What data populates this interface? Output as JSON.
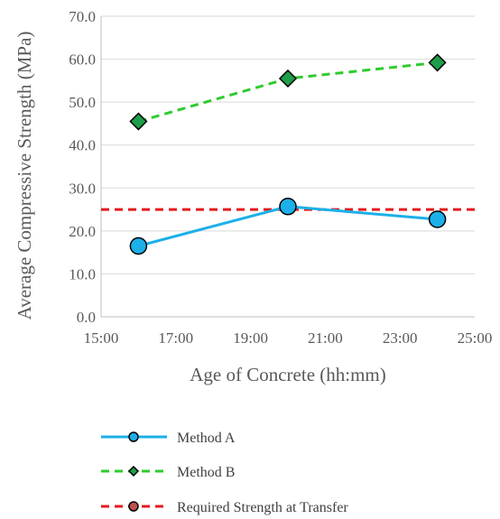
{
  "chart_data": {
    "type": "line",
    "xlabel": "Age of Concrete (hh:mm)",
    "ylabel": "Average Compressive Strength (MPa)",
    "xlim": [
      15,
      25
    ],
    "ylim": [
      0,
      70
    ],
    "x_ticks": [
      {
        "value": 15,
        "label": "15:00"
      },
      {
        "value": 17,
        "label": "17:00"
      },
      {
        "value": 19,
        "label": "19:00"
      },
      {
        "value": 21,
        "label": "21:00"
      },
      {
        "value": 23,
        "label": "23:00"
      },
      {
        "value": 25,
        "label": "25:00"
      }
    ],
    "y_ticks": [
      {
        "value": 0,
        "label": "0.0"
      },
      {
        "value": 10,
        "label": "10.0"
      },
      {
        "value": 20,
        "label": "20.0"
      },
      {
        "value": 30,
        "label": "30.0"
      },
      {
        "value": 40,
        "label": "40.0"
      },
      {
        "value": 50,
        "label": "50.0"
      },
      {
        "value": 60,
        "label": "60.0"
      },
      {
        "value": 70,
        "label": "70.0"
      }
    ],
    "grid": "horizontal",
    "legend_position": "bottom",
    "series": [
      {
        "name": "Method A",
        "x": [
          16,
          20,
          24
        ],
        "y": [
          16.5,
          25.7,
          22.7
        ],
        "line_color": "#1bb0e8",
        "line_style": "solid",
        "marker": "circle",
        "marker_fill": "#1bb0e8"
      },
      {
        "name": "Method B",
        "x": [
          16,
          20,
          24
        ],
        "y": [
          45.5,
          55.5,
          59.2
        ],
        "line_color": "#2ecc2e",
        "line_style": "dashed",
        "marker": "diamond",
        "marker_fill": "#1e9e4a"
      },
      {
        "name": "Required Strength at Transfer",
        "x": [
          15,
          25
        ],
        "y": [
          25,
          25
        ],
        "line_color": "#e31a1c",
        "line_style": "dashed",
        "marker": "circle",
        "marker_fill": "#c0504d"
      }
    ]
  }
}
